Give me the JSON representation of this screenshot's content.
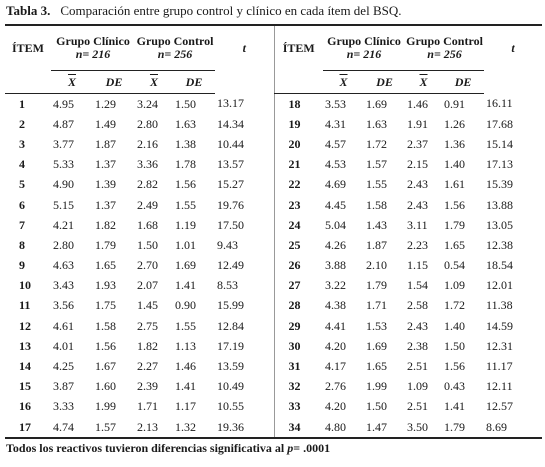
{
  "caption": {
    "label": "Tabla 3.",
    "text": "Comparación entre grupo control y clínico en cada ítem del BSQ."
  },
  "headers": {
    "item": "ÍTEM",
    "group_clinical": "Grupo Clínico",
    "n_clinical": "n= 216",
    "group_control": "Grupo Control",
    "n_control": "n= 256",
    "t": "t",
    "mean": "X",
    "sd": "DE"
  },
  "left_rows": [
    {
      "item": "1",
      "c_mean": "4.95",
      "c_sd": "1.29",
      "k_mean": "3.24",
      "k_sd": "1.50",
      "t": "13.17"
    },
    {
      "item": "2",
      "c_mean": "4.87",
      "c_sd": "1.49",
      "k_mean": "2.80",
      "k_sd": "1.63",
      "t": "14.34"
    },
    {
      "item": "3",
      "c_mean": "3.77",
      "c_sd": "1.87",
      "k_mean": "2.16",
      "k_sd": "1.38",
      "t": "10.44"
    },
    {
      "item": "4",
      "c_mean": "5.33",
      "c_sd": "1.37",
      "k_mean": "3.36",
      "k_sd": "1.78",
      "t": "13.57"
    },
    {
      "item": "5",
      "c_mean": "4.90",
      "c_sd": "1.39",
      "k_mean": "2.82",
      "k_sd": "1.56",
      "t": "15.27"
    },
    {
      "item": "6",
      "c_mean": "5.15",
      "c_sd": "1.37",
      "k_mean": "2.49",
      "k_sd": "1.55",
      "t": "19.76"
    },
    {
      "item": "7",
      "c_mean": "4.21",
      "c_sd": "1.82",
      "k_mean": "1.68",
      "k_sd": "1.19",
      "t": "17.50"
    },
    {
      "item": "8",
      "c_mean": "2.80",
      "c_sd": "1.79",
      "k_mean": "1.50",
      "k_sd": "1.01",
      "t": "9.43"
    },
    {
      "item": "9",
      "c_mean": "4.63",
      "c_sd": "1.65",
      "k_mean": "2.70",
      "k_sd": "1.69",
      "t": "12.49"
    },
    {
      "item": "10",
      "c_mean": "3.43",
      "c_sd": "1.93",
      "k_mean": "2.07",
      "k_sd": "1.41",
      "t": "8.53"
    },
    {
      "item": "11",
      "c_mean": "3.56",
      "c_sd": "1.75",
      "k_mean": "1.45",
      "k_sd": "0.90",
      "t": "15.99"
    },
    {
      "item": "12",
      "c_mean": "4.61",
      "c_sd": "1.58",
      "k_mean": "2.75",
      "k_sd": "1.55",
      "t": "12.84"
    },
    {
      "item": "13",
      "c_mean": "4.01",
      "c_sd": "1.56",
      "k_mean": "1.82",
      "k_sd": "1.13",
      "t": "17.19"
    },
    {
      "item": "14",
      "c_mean": "4.25",
      "c_sd": "1.67",
      "k_mean": "2.27",
      "k_sd": "1.46",
      "t": "13.59"
    },
    {
      "item": "15",
      "c_mean": "3.87",
      "c_sd": "1.60",
      "k_mean": "2.39",
      "k_sd": "1.41",
      "t": "10.49"
    },
    {
      "item": "16",
      "c_mean": "3.33",
      "c_sd": "1.99",
      "k_mean": "1.71",
      "k_sd": "1.17",
      "t": "10.55"
    },
    {
      "item": "17",
      "c_mean": "4.74",
      "c_sd": "1.57",
      "k_mean": "2.13",
      "k_sd": "1.32",
      "t": "19.36"
    }
  ],
  "right_rows": [
    {
      "item": "18",
      "c_mean": "3.53",
      "c_sd": "1.69",
      "k_mean": "1.46",
      "k_sd": "0.91",
      "t": "16.11"
    },
    {
      "item": "19",
      "c_mean": "4.31",
      "c_sd": "1.63",
      "k_mean": "1.91",
      "k_sd": "1.26",
      "t": "17.68"
    },
    {
      "item": "20",
      "c_mean": "4.57",
      "c_sd": "1.72",
      "k_mean": "2.37",
      "k_sd": "1.36",
      "t": "15.14"
    },
    {
      "item": "21",
      "c_mean": "4.53",
      "c_sd": "1.57",
      "k_mean": "2.15",
      "k_sd": "1.40",
      "t": "17.13"
    },
    {
      "item": "22",
      "c_mean": "4.69",
      "c_sd": "1.55",
      "k_mean": "2.43",
      "k_sd": "1.61",
      "t": "15.39"
    },
    {
      "item": "23",
      "c_mean": "4.45",
      "c_sd": "1.58",
      "k_mean": "2.43",
      "k_sd": "1.56",
      "t": "13.88"
    },
    {
      "item": "24",
      "c_mean": "5.04",
      "c_sd": "1.43",
      "k_mean": "3.11",
      "k_sd": "1.79",
      "t": "13.05"
    },
    {
      "item": "25",
      "c_mean": "4.26",
      "c_sd": "1.87",
      "k_mean": "2.23",
      "k_sd": "1.65",
      "t": "12.38"
    },
    {
      "item": "26",
      "c_mean": "3.88",
      "c_sd": "2.10",
      "k_mean": "1.15",
      "k_sd": "0.54",
      "t": "18.54"
    },
    {
      "item": "27",
      "c_mean": "3.22",
      "c_sd": "1.79",
      "k_mean": "1.54",
      "k_sd": "1.09",
      "t": "12.01"
    },
    {
      "item": "28",
      "c_mean": "4.38",
      "c_sd": "1.71",
      "k_mean": "2.58",
      "k_sd": "1.72",
      "t": "11.38"
    },
    {
      "item": "29",
      "c_mean": "4.41",
      "c_sd": "1.53",
      "k_mean": "2.43",
      "k_sd": "1.40",
      "t": "14.59"
    },
    {
      "item": "30",
      "c_mean": "4.20",
      "c_sd": "1.69",
      "k_mean": "2.38",
      "k_sd": "1.50",
      "t": "12.31"
    },
    {
      "item": "31",
      "c_mean": "4.17",
      "c_sd": "1.65",
      "k_mean": "2.51",
      "k_sd": "1.56",
      "t": "11.17"
    },
    {
      "item": "32",
      "c_mean": "2.76",
      "c_sd": "1.99",
      "k_mean": "1.09",
      "k_sd": "0.43",
      "t": "12.11"
    },
    {
      "item": "33",
      "c_mean": "4.20",
      "c_sd": "1.50",
      "k_mean": "2.51",
      "k_sd": "1.41",
      "t": "12.57"
    },
    {
      "item": "34",
      "c_mean": "4.80",
      "c_sd": "1.47",
      "k_mean": "3.50",
      "k_sd": "1.79",
      "t": "8.69"
    }
  ],
  "footnote": {
    "text": "Todos los reactivos tuvieron diferencias significativa  al ",
    "p_label": "p",
    "p_value": "= .0001"
  }
}
